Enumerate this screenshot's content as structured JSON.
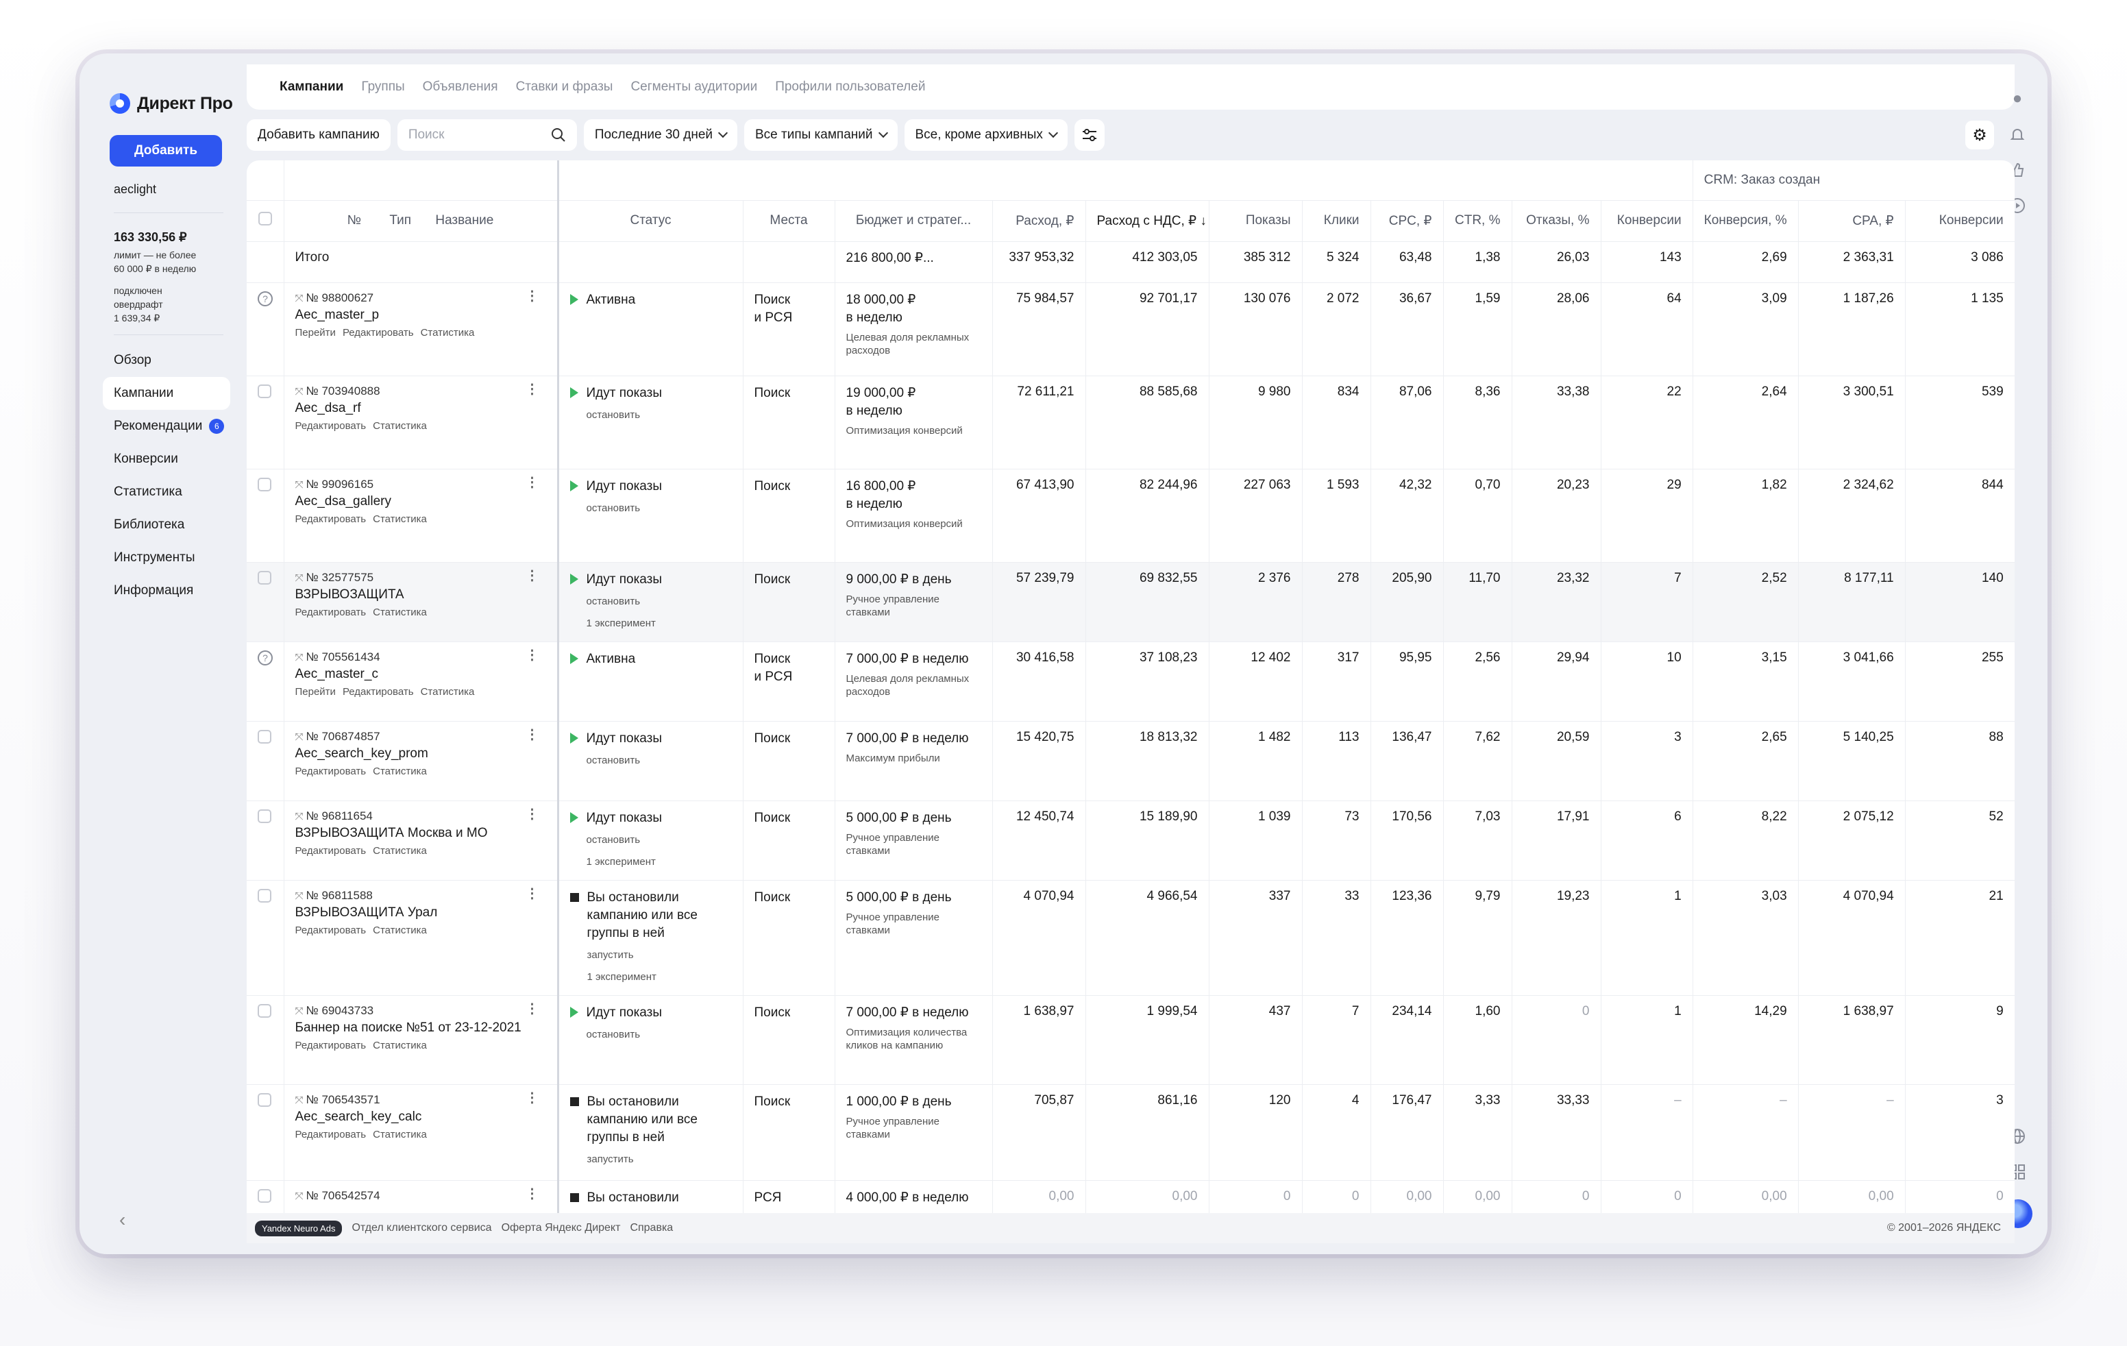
{
  "app": {
    "logo_text": "Директ Про",
    "add_button": "Добавить",
    "login": "aeclight"
  },
  "balance": {
    "amount": "163 330,56 ₽",
    "limit_line1": "лимит — не более",
    "limit_line2": "60 000 ₽ в неделю",
    "overdraft_line1": "подключен",
    "overdraft_line2": "овердрафт",
    "overdraft_amount": "1 639,34 ₽"
  },
  "nav": [
    {
      "label": "Обзор"
    },
    {
      "label": "Кампании",
      "active": true
    },
    {
      "label": "Рекомендации",
      "badge": "6"
    },
    {
      "label": "Конверсии"
    },
    {
      "label": "Статистика"
    },
    {
      "label": "Библиотека"
    },
    {
      "label": "Инструменты"
    },
    {
      "label": "Информация"
    }
  ],
  "tabs": [
    "Кампании",
    "Группы",
    "Объявления",
    "Ставки и фразы",
    "Сегменты аудитории",
    "Профили пользователей"
  ],
  "toolbar": {
    "add_campaign": "Добавить кампанию",
    "search_placeholder": "Поиск",
    "period": "Последние 30 дней",
    "types": "Все типы кампаний",
    "archive": "Все, кроме архивных"
  },
  "table": {
    "group_header": "CRM: Заказ создан",
    "headers": {
      "num": "№",
      "type": "Тип",
      "name": "Название",
      "status": "Статус",
      "places": "Места",
      "budget": "Бюджет и стратег...",
      "spend": "Расход, ₽",
      "spend_vat": "Расход с НДС, ₽ ↓",
      "impressions": "Показы",
      "clicks": "Клики",
      "cpc": "CPC, ₽",
      "ctr": "CTR, %",
      "bounces": "Отказы, %",
      "conv": "Конверсии",
      "conv_rate": "Конверсия, %",
      "cpa": "CPA, ₽",
      "conv2": "Конверсии"
    },
    "total": {
      "label": "Итого",
      "budget": "216 800,00 ₽...",
      "spend": "337 953,32",
      "spend_vat": "412 303,05",
      "impressions": "385 312",
      "clicks": "5 324",
      "cpc": "63,48",
      "ctr": "1,38",
      "bounces": "26,03",
      "conv": "143",
      "conv_rate": "2,69",
      "cpa": "2 363,31",
      "conv2": "3 086"
    },
    "rows": [
      {
        "id": "№ 98800627",
        "name": "Aec_master_p",
        "links": [
          "Перейти",
          "Редактировать",
          "Статистика"
        ],
        "status": "Активна",
        "status_kind": "play",
        "status_sub": [],
        "places": [
          "Поиск",
          "и РСЯ"
        ],
        "budget": [
          "18 000,00 ₽",
          "в неделю"
        ],
        "strategy": "Целевая доля рекламных расходов",
        "spend": "75 984,57",
        "spend_vat": "92 701,17",
        "impressions": "130 076",
        "clicks": "2 072",
        "cpc": "36,67",
        "ctr": "1,59",
        "bounces": "28,06",
        "conv": "64",
        "conv_rate": "3,09",
        "cpa": "1 187,26",
        "conv2": "1 135",
        "icon": "q",
        "highlight": false
      },
      {
        "id": "№ 703940888",
        "name": "Aec_dsa_rf",
        "links": [
          "Редактировать",
          "Статистика"
        ],
        "status": "Идут показы",
        "status_kind": "play",
        "status_sub": [
          "остановить"
        ],
        "places": [
          "Поиск"
        ],
        "budget": [
          "19 000,00 ₽",
          "в неделю"
        ],
        "strategy": "Оптимизация конверсий",
        "spend": "72 611,21",
        "spend_vat": "88 585,68",
        "impressions": "9 980",
        "clicks": "834",
        "cpc": "87,06",
        "ctr": "8,36",
        "bounces": "33,38",
        "conv": "22",
        "conv_rate": "2,64",
        "cpa": "3 300,51",
        "conv2": "539",
        "icon": "cb",
        "highlight": false
      },
      {
        "id": "№ 99096165",
        "name": "Aec_dsa_gallery",
        "links": [
          "Редактировать",
          "Статистика"
        ],
        "status": "Идут показы",
        "status_kind": "play",
        "status_sub": [
          "остановить"
        ],
        "places": [
          "Поиск"
        ],
        "budget": [
          "16 800,00 ₽",
          "в неделю"
        ],
        "strategy": "Оптимизация конверсий",
        "spend": "67 413,90",
        "spend_vat": "82 244,96",
        "impressions": "227 063",
        "clicks": "1 593",
        "cpc": "42,32",
        "ctr": "0,70",
        "bounces": "20,23",
        "conv": "29",
        "conv_rate": "1,82",
        "cpa": "2 324,62",
        "conv2": "844",
        "icon": "cb",
        "highlight": false
      },
      {
        "id": "№ 32577575",
        "name": "ВЗРЫВОЗАЩИТА",
        "links": [
          "Редактировать",
          "Статистика"
        ],
        "status": "Идут показы",
        "status_kind": "play",
        "status_sub": [
          "остановить",
          "1 эксперимент"
        ],
        "places": [
          "Поиск"
        ],
        "budget": [
          "9 000,00 ₽ в день"
        ],
        "strategy": "Ручное управление ставками",
        "spend": "57 239,79",
        "spend_vat": "69 832,55",
        "impressions": "2 376",
        "clicks": "278",
        "cpc": "205,90",
        "ctr": "11,70",
        "bounces": "23,32",
        "conv": "7",
        "conv_rate": "2,52",
        "cpa": "8 177,11",
        "conv2": "140",
        "icon": "cb",
        "highlight": true
      },
      {
        "id": "№ 705561434",
        "name": "Aec_master_c",
        "links": [
          "Перейти",
          "Редактировать",
          "Статистика"
        ],
        "status": "Активна",
        "status_kind": "play",
        "status_sub": [],
        "places": [
          "Поиск",
          "и РСЯ"
        ],
        "budget": [
          "7 000,00 ₽ в неделю"
        ],
        "strategy": "Целевая доля рекламных расходов",
        "spend": "30 416,58",
        "spend_vat": "37 108,23",
        "impressions": "12 402",
        "clicks": "317",
        "cpc": "95,95",
        "ctr": "2,56",
        "bounces": "29,94",
        "conv": "10",
        "conv_rate": "3,15",
        "cpa": "3 041,66",
        "conv2": "255",
        "icon": "q",
        "highlight": false
      },
      {
        "id": "№ 706874857",
        "name": "Aec_search_key_prom",
        "links": [
          "Редактировать",
          "Статистика"
        ],
        "status": "Идут показы",
        "status_kind": "play",
        "status_sub": [
          "остановить"
        ],
        "places": [
          "Поиск"
        ],
        "budget": [
          "7 000,00 ₽ в неделю"
        ],
        "strategy": "Максимум прибыли",
        "spend": "15 420,75",
        "spend_vat": "18 813,32",
        "impressions": "1 482",
        "clicks": "113",
        "cpc": "136,47",
        "ctr": "7,62",
        "bounces": "20,59",
        "conv": "3",
        "conv_rate": "2,65",
        "cpa": "5 140,25",
        "conv2": "88",
        "icon": "cb",
        "highlight": false
      },
      {
        "id": "№ 96811654",
        "name": "ВЗРЫВОЗАЩИТА Москва и МО",
        "links": [
          "Редактировать",
          "Статистика"
        ],
        "status": "Идут показы",
        "status_kind": "play",
        "status_sub": [
          "остановить",
          "1 эксперимент"
        ],
        "places": [
          "Поиск"
        ],
        "budget": [
          "5 000,00 ₽ в день"
        ],
        "strategy": "Ручное управление ставками",
        "spend": "12 450,74",
        "spend_vat": "15 189,90",
        "impressions": "1 039",
        "clicks": "73",
        "cpc": "170,56",
        "ctr": "7,03",
        "bounces": "17,91",
        "conv": "6",
        "conv_rate": "8,22",
        "cpa": "2 075,12",
        "conv2": "52",
        "icon": "cb",
        "highlight": false
      },
      {
        "id": "№ 96811588",
        "name": "ВЗРЫВОЗАЩИТА Урал",
        "links": [
          "Редактировать",
          "Статистика"
        ],
        "status": "Вы остановили кампанию или все группы в ней",
        "status_kind": "stop",
        "status_sub": [
          "запустить",
          "1 эксперимент"
        ],
        "places": [
          "Поиск"
        ],
        "budget": [
          "5 000,00 ₽ в день"
        ],
        "strategy": "Ручное управление ставками",
        "spend": "4 070,94",
        "spend_vat": "4 966,54",
        "impressions": "337",
        "clicks": "33",
        "cpc": "123,36",
        "ctr": "9,79",
        "bounces": "19,23",
        "conv": "1",
        "conv_rate": "3,03",
        "cpa": "4 070,94",
        "conv2": "21",
        "icon": "cb",
        "highlight": false
      },
      {
        "id": "№ 69043733",
        "name": "Баннер на поиске №51 от 23-12-2021",
        "links": [
          "Редактировать",
          "Статистика"
        ],
        "status": "Идут показы",
        "status_kind": "play",
        "status_sub": [
          "остановить"
        ],
        "places": [
          "Поиск"
        ],
        "budget": [
          "7 000,00 ₽ в неделю"
        ],
        "strategy": "Оптимизация количества кликов на кампанию",
        "spend": "1 638,97",
        "spend_vat": "1 999,54",
        "impressions": "437",
        "clicks": "7",
        "cpc": "234,14",
        "ctr": "1,60",
        "bounces": "0",
        "conv": "1",
        "conv_rate": "14,29",
        "cpa": "1 638,97",
        "conv2": "9",
        "icon": "cb",
        "highlight": false
      },
      {
        "id": "№ 706543571",
        "name": "Aec_search_key_calc",
        "links": [
          "Редактировать",
          "Статистика"
        ],
        "status": "Вы остановили кампанию или все группы в ней",
        "status_kind": "stop",
        "status_sub": [
          "запустить"
        ],
        "places": [
          "Поиск"
        ],
        "budget": [
          "1 000,00 ₽ в день"
        ],
        "strategy": "Ручное управление ставками",
        "spend": "705,87",
        "spend_vat": "861,16",
        "impressions": "120",
        "clicks": "4",
        "cpc": "176,47",
        "ctr": "3,33",
        "bounces": "33,33",
        "conv": "–",
        "conv_rate": "–",
        "cpa": "–",
        "conv2": "3",
        "icon": "cb",
        "highlight": false
      },
      {
        "id": "№ 706542574",
        "name": "",
        "links": [],
        "status": "Вы остановили",
        "status_kind": "stop",
        "status_sub": [],
        "places": [
          "РСЯ"
        ],
        "budget": [
          "4 000,00 ₽ в неделю"
        ],
        "strategy": "",
        "spend": "0,00",
        "spend_vat": "0,00",
        "impressions": "0",
        "clicks": "0",
        "cpc": "0,00",
        "ctr": "0,00",
        "bounces": "0",
        "conv": "0",
        "conv_rate": "0,00",
        "cpa": "0,00",
        "conv2": "0",
        "icon": "cb",
        "highlight": false
      }
    ]
  },
  "footer": {
    "badge": "Yandex Neuro Ads",
    "links": [
      "Отдел клиентского сервиса",
      "Оферта Яндекс Директ",
      "Справка"
    ],
    "copyright": "© 2001–2026 ЯНДЕКС"
  },
  "colors": {
    "accent": "#2e56f0",
    "active_green": "#3cb562"
  }
}
